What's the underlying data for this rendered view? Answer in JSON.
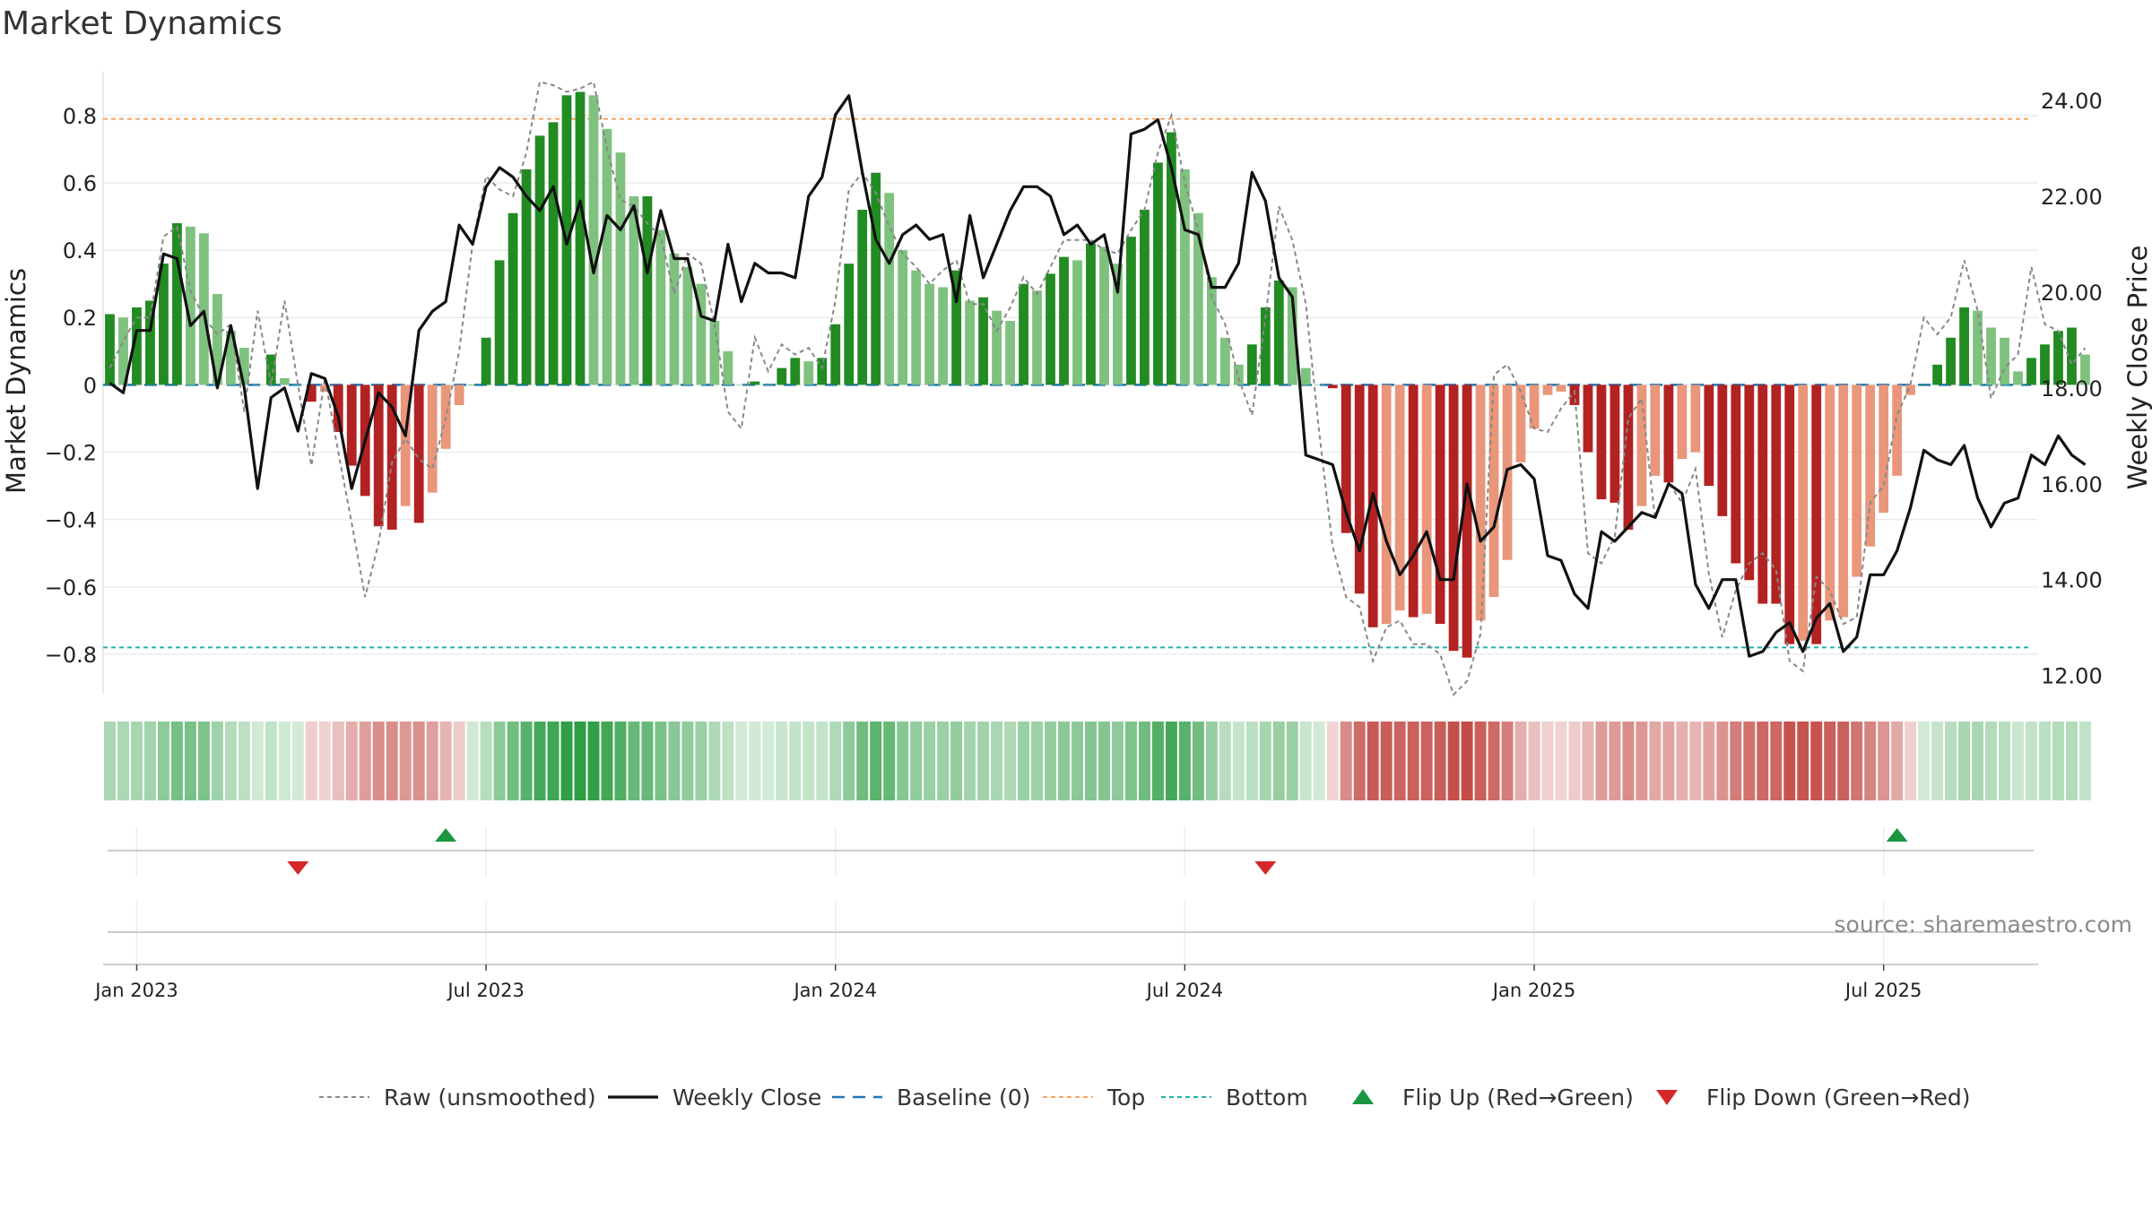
{
  "title": "Market Dynamics",
  "source": "source: sharemaestro.com",
  "colors": {
    "strong_green": "#228b22",
    "light_green": "#7fc17f",
    "strong_red": "#b22222",
    "light_red": "#e9967a",
    "raw": "#888888",
    "close": "#111111",
    "baseline": "#1f77b4",
    "top": "#f4a460",
    "bottom": "#20b2aa",
    "flip_up": "#1a9641",
    "flip_down": "#d62728"
  },
  "chart_data": {
    "type": "bar+line",
    "title": "Market Dynamics",
    "y_left_label": "Market Dynamics",
    "y_right_label": "Weekly Close Price",
    "y_left_range": [
      -0.92,
      0.93
    ],
    "y_left_ticks": [
      "0.8",
      "0.6",
      "0.4",
      "0.2",
      "0",
      "−0.2",
      "−0.4",
      "−0.6",
      "−0.8"
    ],
    "y_left_tick_values": [
      0.8,
      0.6,
      0.4,
      0.2,
      0,
      -0.2,
      -0.4,
      -0.6,
      -0.8
    ],
    "y_right_range": [
      11.6,
      24.6
    ],
    "y_right_ticks": [
      "24.00",
      "22.00",
      "20.00",
      "18.00",
      "16.00",
      "14.00",
      "12.00"
    ],
    "y_right_tick_values": [
      24,
      22,
      20,
      18,
      16,
      14,
      12
    ],
    "x_ticks": [
      "Jan 2023",
      "Jul 2023",
      "Jan 2024",
      "Jul 2024",
      "Jan 2025",
      "Jul 2025"
    ],
    "x_tick_weeks": [
      2,
      28,
      54,
      80,
      106,
      132
    ],
    "top_line": 0.79,
    "bottom_line": -0.78,
    "baseline": 0,
    "weeks": 144,
    "market_dynamics": [
      0.21,
      0.2,
      0.23,
      0.25,
      0.36,
      0.48,
      0.47,
      0.45,
      0.27,
      0.16,
      0.11,
      0.0,
      0.09,
      0.02,
      0.0,
      -0.05,
      -0.02,
      -0.14,
      -0.24,
      -0.33,
      -0.42,
      -0.43,
      -0.36,
      -0.41,
      -0.32,
      -0.19,
      -0.06,
      0.0,
      0.14,
      0.37,
      0.51,
      0.64,
      0.74,
      0.78,
      0.86,
      0.87,
      0.86,
      0.76,
      0.69,
      0.56,
      0.56,
      0.46,
      0.39,
      0.35,
      0.3,
      0.19,
      0.1,
      0.0,
      0.01,
      0.0,
      0.05,
      0.08,
      0.07,
      0.08,
      0.18,
      0.36,
      0.52,
      0.63,
      0.57,
      0.4,
      0.34,
      0.3,
      0.29,
      0.34,
      0.25,
      0.26,
      0.22,
      0.19,
      0.3,
      0.28,
      0.33,
      0.38,
      0.37,
      0.42,
      0.41,
      0.36,
      0.44,
      0.52,
      0.66,
      0.75,
      0.64,
      0.51,
      0.32,
      0.14,
      0.06,
      0.12,
      0.23,
      0.31,
      0.29,
      0.05,
      0.0,
      -0.01,
      -0.44,
      -0.62,
      -0.72,
      -0.71,
      -0.67,
      -0.69,
      -0.68,
      -0.71,
      -0.79,
      -0.81,
      -0.7,
      -0.63,
      -0.52,
      -0.23,
      -0.13,
      -0.03,
      -0.02,
      -0.06,
      -0.2,
      -0.34,
      -0.35,
      -0.43,
      -0.36,
      -0.27,
      -0.29,
      -0.22,
      -0.2,
      -0.3,
      -0.39,
      -0.53,
      -0.58,
      -0.65,
      -0.65,
      -0.77,
      -0.76,
      -0.77,
      -0.7,
      -0.69,
      -0.57,
      -0.48,
      -0.38,
      -0.27,
      -0.03,
      0.0,
      0.06,
      0.14,
      0.23,
      0.22,
      0.17,
      0.14,
      0.04,
      0.08,
      0.12,
      0.16,
      0.17,
      0.09
    ],
    "raw": [
      0.05,
      0.13,
      0.2,
      0.2,
      0.44,
      0.47,
      0.28,
      0.2,
      0.15,
      0.18,
      -0.08,
      0.22,
      0.0,
      0.25,
      0.0,
      -0.24,
      0.02,
      -0.2,
      -0.41,
      -0.63,
      -0.47,
      -0.23,
      -0.16,
      -0.22,
      -0.25,
      -0.1,
      0.1,
      0.42,
      0.62,
      0.58,
      0.56,
      0.69,
      0.9,
      0.89,
      0.87,
      0.88,
      0.9,
      0.7,
      0.55,
      0.53,
      0.48,
      0.44,
      0.27,
      0.39,
      0.36,
      0.18,
      -0.08,
      -0.13,
      0.14,
      0.04,
      0.12,
      0.09,
      0.11,
      0.05,
      0.25,
      0.58,
      0.63,
      0.57,
      0.47,
      0.39,
      0.35,
      0.3,
      0.34,
      0.37,
      0.24,
      0.24,
      0.16,
      0.23,
      0.32,
      0.27,
      0.35,
      0.43,
      0.43,
      0.43,
      0.4,
      0.39,
      0.46,
      0.52,
      0.69,
      0.8,
      0.6,
      0.46,
      0.26,
      0.18,
      0.02,
      -0.09,
      0.2,
      0.53,
      0.43,
      0.24,
      -0.14,
      -0.48,
      -0.63,
      -0.66,
      -0.82,
      -0.72,
      -0.7,
      -0.77,
      -0.77,
      -0.8,
      -0.92,
      -0.88,
      -0.74,
      0.03,
      0.06,
      -0.02,
      -0.13,
      -0.14,
      -0.07,
      -0.02,
      -0.5,
      -0.53,
      -0.45,
      -0.1,
      -0.04,
      -0.4,
      -0.29,
      -0.35,
      -0.25,
      -0.56,
      -0.75,
      -0.61,
      -0.53,
      -0.5,
      -0.55,
      -0.82,
      -0.85,
      -0.57,
      -0.61,
      -0.71,
      -0.69,
      -0.35,
      -0.3,
      -0.09,
      0.0,
      0.2,
      0.15,
      0.2,
      0.37,
      0.22,
      -0.04,
      0.05,
      0.09,
      0.35,
      0.18,
      0.16,
      0.06,
      0.11
    ],
    "weekly_close": [
      18.1,
      17.9,
      19.2,
      19.2,
      20.8,
      20.7,
      19.3,
      19.6,
      18.0,
      19.3,
      18.0,
      15.9,
      17.8,
      18.0,
      17.1,
      18.3,
      18.2,
      17.4,
      15.9,
      16.9,
      17.9,
      17.6,
      17.0,
      19.2,
      19.6,
      19.8,
      21.4,
      21.0,
      22.2,
      22.6,
      22.4,
      22.0,
      21.7,
      22.2,
      21.0,
      21.9,
      20.4,
      21.6,
      21.3,
      21.8,
      20.4,
      21.7,
      20.7,
      20.7,
      19.5,
      19.4,
      21.0,
      19.8,
      20.6,
      20.4,
      20.4,
      20.3,
      22.0,
      22.4,
      23.7,
      24.1,
      22.5,
      21.1,
      20.6,
      21.2,
      21.4,
      21.1,
      21.2,
      19.8,
      21.6,
      20.3,
      21.0,
      21.7,
      22.2,
      22.2,
      22.0,
      21.2,
      21.4,
      21.0,
      21.2,
      20.0,
      23.3,
      23.4,
      23.6,
      22.6,
      21.3,
      21.2,
      20.1,
      20.1,
      20.6,
      22.5,
      21.9,
      20.3,
      19.9,
      16.6,
      16.5,
      16.4,
      15.4,
      14.6,
      15.8,
      14.8,
      14.1,
      14.5,
      15.0,
      14.0,
      14.0,
      16.0,
      14.8,
      15.1,
      16.3,
      16.4,
      16.1,
      14.5,
      14.4,
      13.7,
      13.4,
      15.0,
      14.8,
      15.1,
      15.4,
      15.3,
      16.0,
      15.8,
      13.9,
      13.4,
      14.0,
      14.0,
      12.4,
      12.5,
      12.9,
      13.1,
      12.5,
      13.2,
      13.5,
      12.5,
      12.8,
      14.1,
      14.1,
      14.6,
      15.5,
      16.7,
      16.5,
      16.4,
      16.8,
      15.7,
      15.1,
      15.6,
      15.7,
      16.6,
      16.4,
      17.0,
      16.6,
      16.4
    ],
    "heat_strip_weeks": 144,
    "flip_up_weeks": [
      25,
      133
    ],
    "flip_down_weeks": [
      14,
      86
    ],
    "legend": [
      {
        "label": "Raw (unsmoothed)",
        "style": "dashed-gray"
      },
      {
        "label": "Weekly Close",
        "style": "solid-black"
      },
      {
        "label": "Baseline (0)",
        "style": "dashed-blue"
      },
      {
        "label": "Top",
        "style": "dotted-orange"
      },
      {
        "label": "Bottom",
        "style": "dotted-teal"
      },
      {
        "label": "Flip Up (Red→Green)",
        "style": "triangle-up-green"
      },
      {
        "label": "Flip Down (Green→Red)",
        "style": "triangle-down-red"
      }
    ]
  }
}
